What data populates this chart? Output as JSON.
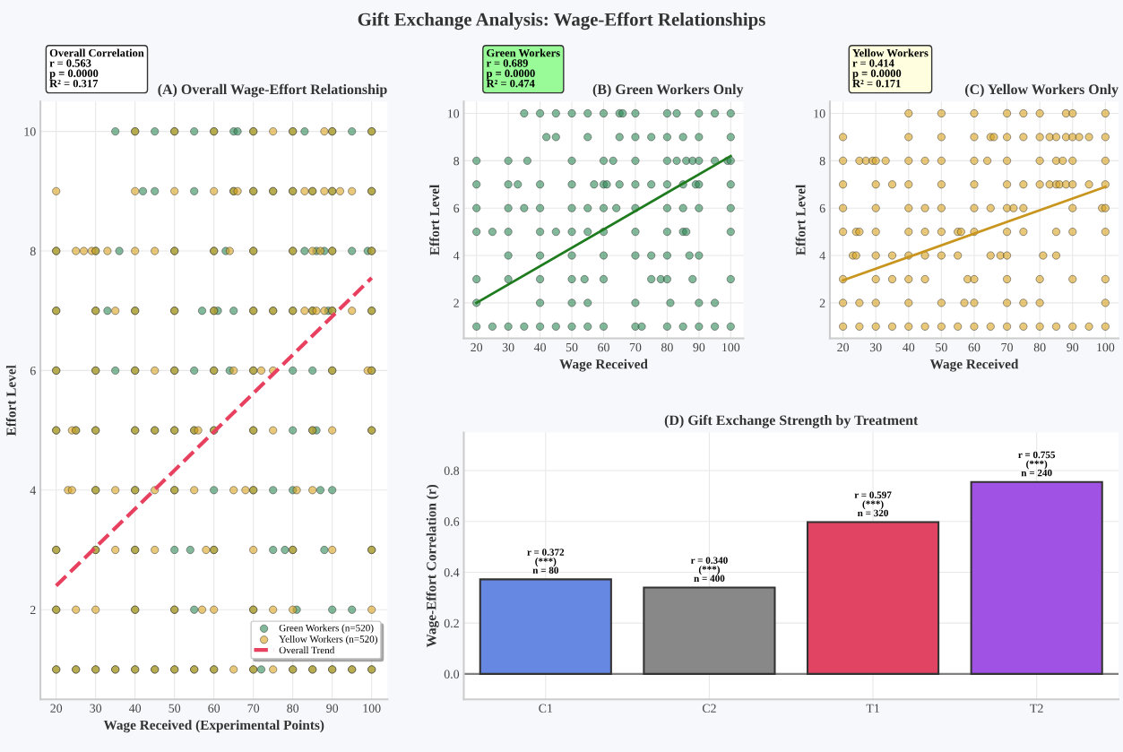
{
  "chart_data": [
    {
      "type": "scatter",
      "title": "(A) Overall Wage-Effort Relationship",
      "xlabel": "Wage Received (Experimental Points)",
      "ylabel": "Effort Level",
      "xlim": [
        16,
        104
      ],
      "ylim": [
        0.5,
        10.5
      ],
      "xticks": [
        20,
        30,
        40,
        50,
        60,
        70,
        80,
        90,
        100
      ],
      "yticks": [
        2,
        4,
        6,
        8,
        10
      ],
      "grid": true,
      "legend": "bottom right",
      "marker": "circle",
      "annotations": [
        "Gift Exchange Analysis: Wage-Effort Relationships",
        "Overall Correlation\nr = 0.563\np = 0.0000\nR² = 0.317"
      ],
      "series": [
        {
          "name": "Green Workers (n=520)",
          "color": "#2e8b57",
          "x": [
            35,
            40,
            45,
            50,
            55,
            60,
            65,
            66,
            70,
            80,
            83,
            90,
            95,
            100,
            42,
            45,
            55,
            65,
            70,
            75,
            80,
            85,
            90,
            100,
            20,
            30,
            36,
            50,
            60,
            63,
            70,
            80,
            83,
            86,
            88,
            90,
            95,
            99,
            100,
            20,
            30,
            33,
            40,
            50,
            57,
            60,
            61,
            65,
            70,
            75,
            80,
            85,
            89,
            90,
            100,
            20,
            30,
            35,
            40,
            50,
            55,
            60,
            64,
            70,
            80,
            85,
            90,
            100,
            20,
            25,
            30,
            40,
            45,
            50,
            55,
            60,
            70,
            80,
            85,
            86,
            100,
            30,
            40,
            50,
            60,
            70,
            75,
            80,
            87,
            90,
            20,
            30,
            40,
            50,
            54,
            60,
            75,
            78,
            80,
            88,
            100,
            20,
            40,
            50,
            55,
            70,
            81,
            90,
            95,
            20,
            25,
            30,
            35,
            40,
            45,
            50,
            55,
            60,
            70,
            72,
            80,
            85,
            90,
            95,
            100
          ],
          "values": [
            10,
            10,
            10,
            10,
            10,
            10,
            10,
            10,
            10,
            10,
            10,
            10,
            10,
            10,
            9,
            9,
            9,
            9,
            9,
            9,
            9,
            9,
            9,
            9,
            8,
            8,
            8,
            8,
            8,
            8,
            8,
            8,
            8,
            8,
            8,
            8,
            8,
            8,
            8,
            7,
            7,
            7,
            7,
            7,
            7,
            7,
            7,
            7,
            7,
            7,
            7,
            7,
            7,
            7,
            7,
            6,
            6,
            6,
            6,
            6,
            6,
            6,
            6,
            6,
            6,
            6,
            6,
            6,
            5,
            5,
            5,
            5,
            5,
            5,
            5,
            5,
            5,
            5,
            5,
            5,
            5,
            4,
            4,
            4,
            4,
            4,
            4,
            4,
            4,
            4,
            3,
            3,
            3,
            3,
            3,
            3,
            3,
            3,
            3,
            3,
            3,
            2,
            2,
            2,
            2,
            2,
            2,
            2,
            2,
            1,
            1,
            1,
            1,
            1,
            1,
            1,
            1,
            1,
            1,
            1,
            1,
            1,
            1,
            1,
            1
          ]
        },
        {
          "name": "Yellow Workers (n=520)",
          "color": "#daa520",
          "x": [
            40,
            50,
            60,
            70,
            75,
            80,
            88,
            90,
            100,
            20,
            40,
            50,
            60,
            65,
            66,
            70,
            75,
            80,
            83,
            85,
            88,
            90,
            92,
            95,
            100,
            20,
            25,
            27,
            29,
            30,
            33,
            40,
            45,
            50,
            60,
            64,
            70,
            80,
            85,
            87,
            90,
            100,
            20,
            30,
            35,
            40,
            50,
            60,
            70,
            75,
            80,
            83,
            85,
            86,
            88,
            90,
            95,
            100,
            20,
            30,
            40,
            45,
            50,
            60,
            65,
            70,
            72,
            75,
            90,
            99,
            100,
            20,
            24,
            25,
            30,
            40,
            45,
            50,
            55,
            56,
            60,
            70,
            75,
            85,
            90,
            100,
            23,
            24,
            30,
            35,
            40,
            45,
            50,
            55,
            65,
            68,
            70,
            81,
            85,
            20,
            30,
            35,
            40,
            45,
            58,
            60,
            70,
            80,
            90,
            100,
            20,
            25,
            30,
            40,
            50,
            57,
            60,
            70,
            75,
            80,
            100,
            20,
            25,
            30,
            35,
            40,
            45,
            50,
            55,
            60,
            65,
            70,
            75,
            80,
            85,
            90,
            95,
            100
          ],
          "values": [
            10,
            10,
            10,
            10,
            10,
            10,
            10,
            10,
            10,
            9,
            9,
            9,
            9,
            9,
            9,
            9,
            9,
            9,
            9,
            9,
            9,
            9,
            9,
            9,
            9,
            8,
            8,
            8,
            8,
            8,
            8,
            8,
            8,
            8,
            8,
            8,
            8,
            8,
            8,
            8,
            8,
            8,
            7,
            7,
            7,
            7,
            7,
            7,
            7,
            7,
            7,
            7,
            7,
            7,
            7,
            7,
            7,
            7,
            6,
            6,
            6,
            6,
            6,
            6,
            6,
            6,
            6,
            6,
            6,
            6,
            6,
            5,
            5,
            5,
            5,
            5,
            5,
            5,
            5,
            5,
            5,
            5,
            5,
            5,
            5,
            5,
            4,
            4,
            4,
            4,
            4,
            4,
            4,
            4,
            4,
            4,
            4,
            4,
            4,
            3,
            3,
            3,
            3,
            3,
            3,
            3,
            3,
            3,
            3,
            3,
            2,
            2,
            2,
            2,
            2,
            2,
            2,
            2,
            2,
            2,
            2,
            1,
            1,
            1,
            1,
            1,
            1,
            1,
            1,
            1,
            1,
            1,
            1,
            1,
            1,
            1,
            1,
            1
          ]
        },
        {
          "name": "Overall Trend",
          "type": "line",
          "line_style": "dashed",
          "marker": "none",
          "color": "#e8405f",
          "x": [
            20,
            100
          ],
          "values": [
            2.4,
            7.55
          ]
        }
      ]
    },
    {
      "type": "scatter",
      "title": "(B) Green Workers Only",
      "xlabel": "Wage Received",
      "ylabel": "Effort Level",
      "xlim": [
        16,
        104
      ],
      "ylim": [
        0.5,
        10.5
      ],
      "xticks": [
        20,
        30,
        40,
        50,
        60,
        70,
        80,
        90,
        100
      ],
      "yticks": [
        2,
        4,
        6,
        8,
        10
      ],
      "grid": true,
      "marker": "circle",
      "annotations": [
        "Green Workers\nr = 0.689\np = 0.0000\nR² = 0.474"
      ],
      "series": [
        {
          "color": "#2e8b57",
          "x": [
            35,
            40,
            45,
            50,
            55,
            60,
            65,
            66,
            70,
            80,
            83,
            90,
            95,
            100,
            42,
            45,
            55,
            65,
            70,
            75,
            80,
            85,
            90,
            100,
            20,
            30,
            36,
            50,
            60,
            63,
            70,
            80,
            83,
            86,
            88,
            90,
            95,
            99,
            100,
            20,
            30,
            33,
            40,
            50,
            57,
            60,
            61,
            65,
            70,
            75,
            80,
            85,
            89,
            90,
            100,
            20,
            30,
            35,
            40,
            50,
            55,
            60,
            64,
            70,
            80,
            85,
            90,
            100,
            20,
            25,
            30,
            40,
            45,
            50,
            55,
            60,
            70,
            80,
            85,
            86,
            100,
            30,
            40,
            50,
            60,
            70,
            75,
            80,
            87,
            90,
            20,
            30,
            40,
            50,
            54,
            60,
            75,
            78,
            80,
            88,
            100,
            20,
            40,
            50,
            55,
            70,
            81,
            90,
            95,
            20,
            25,
            30,
            35,
            40,
            45,
            50,
            55,
            60,
            70,
            72,
            80,
            85,
            90,
            95,
            100
          ],
          "values": [
            10,
            10,
            10,
            10,
            10,
            10,
            10,
            10,
            10,
            10,
            10,
            10,
            10,
            10,
            9,
            9,
            9,
            9,
            9,
            9,
            9,
            9,
            9,
            9,
            8,
            8,
            8,
            8,
            8,
            8,
            8,
            8,
            8,
            8,
            8,
            8,
            8,
            8,
            8,
            7,
            7,
            7,
            7,
            7,
            7,
            7,
            7,
            7,
            7,
            7,
            7,
            7,
            7,
            7,
            7,
            6,
            6,
            6,
            6,
            6,
            6,
            6,
            6,
            6,
            6,
            6,
            6,
            6,
            5,
            5,
            5,
            5,
            5,
            5,
            5,
            5,
            5,
            5,
            5,
            5,
            5,
            4,
            4,
            4,
            4,
            4,
            4,
            4,
            4,
            4,
            3,
            3,
            3,
            3,
            3,
            3,
            3,
            3,
            3,
            3,
            3,
            2,
            2,
            2,
            2,
            2,
            2,
            2,
            2,
            1,
            1,
            1,
            1,
            1,
            1,
            1,
            1,
            1,
            1,
            1,
            1,
            1,
            1,
            1,
            1
          ]
        },
        {
          "type": "line",
          "line_style": "solid",
          "marker": "none",
          "color": "#1e7b1e",
          "x": [
            20,
            100
          ],
          "values": [
            2.0,
            8.2
          ]
        }
      ]
    },
    {
      "type": "scatter",
      "title": "(C) Yellow Workers Only",
      "xlabel": "Wage Received",
      "ylabel": "Effort Level",
      "xlim": [
        16,
        104
      ],
      "ylim": [
        0.5,
        10.5
      ],
      "xticks": [
        20,
        30,
        40,
        50,
        60,
        70,
        80,
        90,
        100
      ],
      "yticks": [
        2,
        4,
        6,
        8,
        10
      ],
      "grid": true,
      "marker": "circle",
      "annotations": [
        "Yellow Workers\nr = 0.414\np = 0.0000\nR² = 0.171"
      ],
      "series": [
        {
          "color": "#daa520",
          "x": [
            40,
            50,
            60,
            70,
            75,
            80,
            88,
            90,
            100,
            20,
            40,
            50,
            60,
            65,
            66,
            70,
            75,
            80,
            83,
            85,
            88,
            90,
            92,
            95,
            100,
            20,
            25,
            27,
            29,
            30,
            33,
            40,
            45,
            50,
            60,
            64,
            70,
            80,
            85,
            87,
            90,
            100,
            20,
            30,
            35,
            40,
            50,
            60,
            70,
            75,
            80,
            83,
            85,
            86,
            88,
            90,
            95,
            100,
            20,
            30,
            40,
            45,
            50,
            60,
            65,
            70,
            72,
            75,
            90,
            99,
            100,
            20,
            24,
            25,
            30,
            40,
            45,
            50,
            55,
            56,
            60,
            70,
            75,
            85,
            90,
            100,
            23,
            24,
            30,
            35,
            40,
            45,
            50,
            55,
            65,
            68,
            70,
            81,
            85,
            20,
            30,
            35,
            40,
            45,
            58,
            60,
            70,
            80,
            90,
            100,
            20,
            25,
            30,
            40,
            50,
            57,
            60,
            70,
            75,
            80,
            100,
            20,
            25,
            30,
            35,
            40,
            45,
            50,
            55,
            60,
            65,
            70,
            75,
            80,
            85,
            90,
            95,
            100
          ],
          "values": [
            10,
            10,
            10,
            10,
            10,
            10,
            10,
            10,
            10,
            9,
            9,
            9,
            9,
            9,
            9,
            9,
            9,
            9,
            9,
            9,
            9,
            9,
            9,
            9,
            9,
            8,
            8,
            8,
            8,
            8,
            8,
            8,
            8,
            8,
            8,
            8,
            8,
            8,
            8,
            8,
            8,
            8,
            7,
            7,
            7,
            7,
            7,
            7,
            7,
            7,
            7,
            7,
            7,
            7,
            7,
            7,
            7,
            7,
            6,
            6,
            6,
            6,
            6,
            6,
            6,
            6,
            6,
            6,
            6,
            6,
            6,
            5,
            5,
            5,
            5,
            5,
            5,
            5,
            5,
            5,
            5,
            5,
            5,
            5,
            5,
            5,
            4,
            4,
            4,
            4,
            4,
            4,
            4,
            4,
            4,
            4,
            4,
            4,
            4,
            3,
            3,
            3,
            3,
            3,
            3,
            3,
            3,
            3,
            3,
            3,
            2,
            2,
            2,
            2,
            2,
            2,
            2,
            2,
            2,
            2,
            2,
            1,
            1,
            1,
            1,
            1,
            1,
            1,
            1,
            1,
            1,
            1,
            1,
            1,
            1,
            1,
            1,
            1
          ]
        },
        {
          "type": "line",
          "line_style": "solid",
          "marker": "none",
          "color": "#c8961e",
          "x": [
            20,
            100
          ],
          "values": [
            2.95,
            6.9
          ]
        }
      ]
    },
    {
      "type": "bar",
      "title": "(D) Gift Exchange Strength by Treatment",
      "ylabel": "Wage-Effort Correlation (r)",
      "categories": [
        "C1",
        "C2",
        "T1",
        "T2"
      ],
      "values": [
        0.372,
        0.34,
        0.597,
        0.755
      ],
      "colors": [
        "#6688e3",
        "#888888",
        "#e04462",
        "#a052e5"
      ],
      "ylim": [
        -0.1,
        0.95
      ],
      "yticks": [
        {
          "value": 0,
          "label": "0.0"
        },
        0.2,
        0.4,
        0.6,
        0.8
      ],
      "grid": true,
      "value_labels": [
        "r = 0.372\n(***)\nn = 80",
        "r = 0.340\n(***)\nn = 400",
        "r = 0.597\n(***)\nn = 320",
        "r = 0.755\n(***)\nn = 240"
      ],
      "ref_lines": [
        {
          "axis": "y",
          "value": 0,
          "color": "#808080"
        }
      ]
    }
  ]
}
